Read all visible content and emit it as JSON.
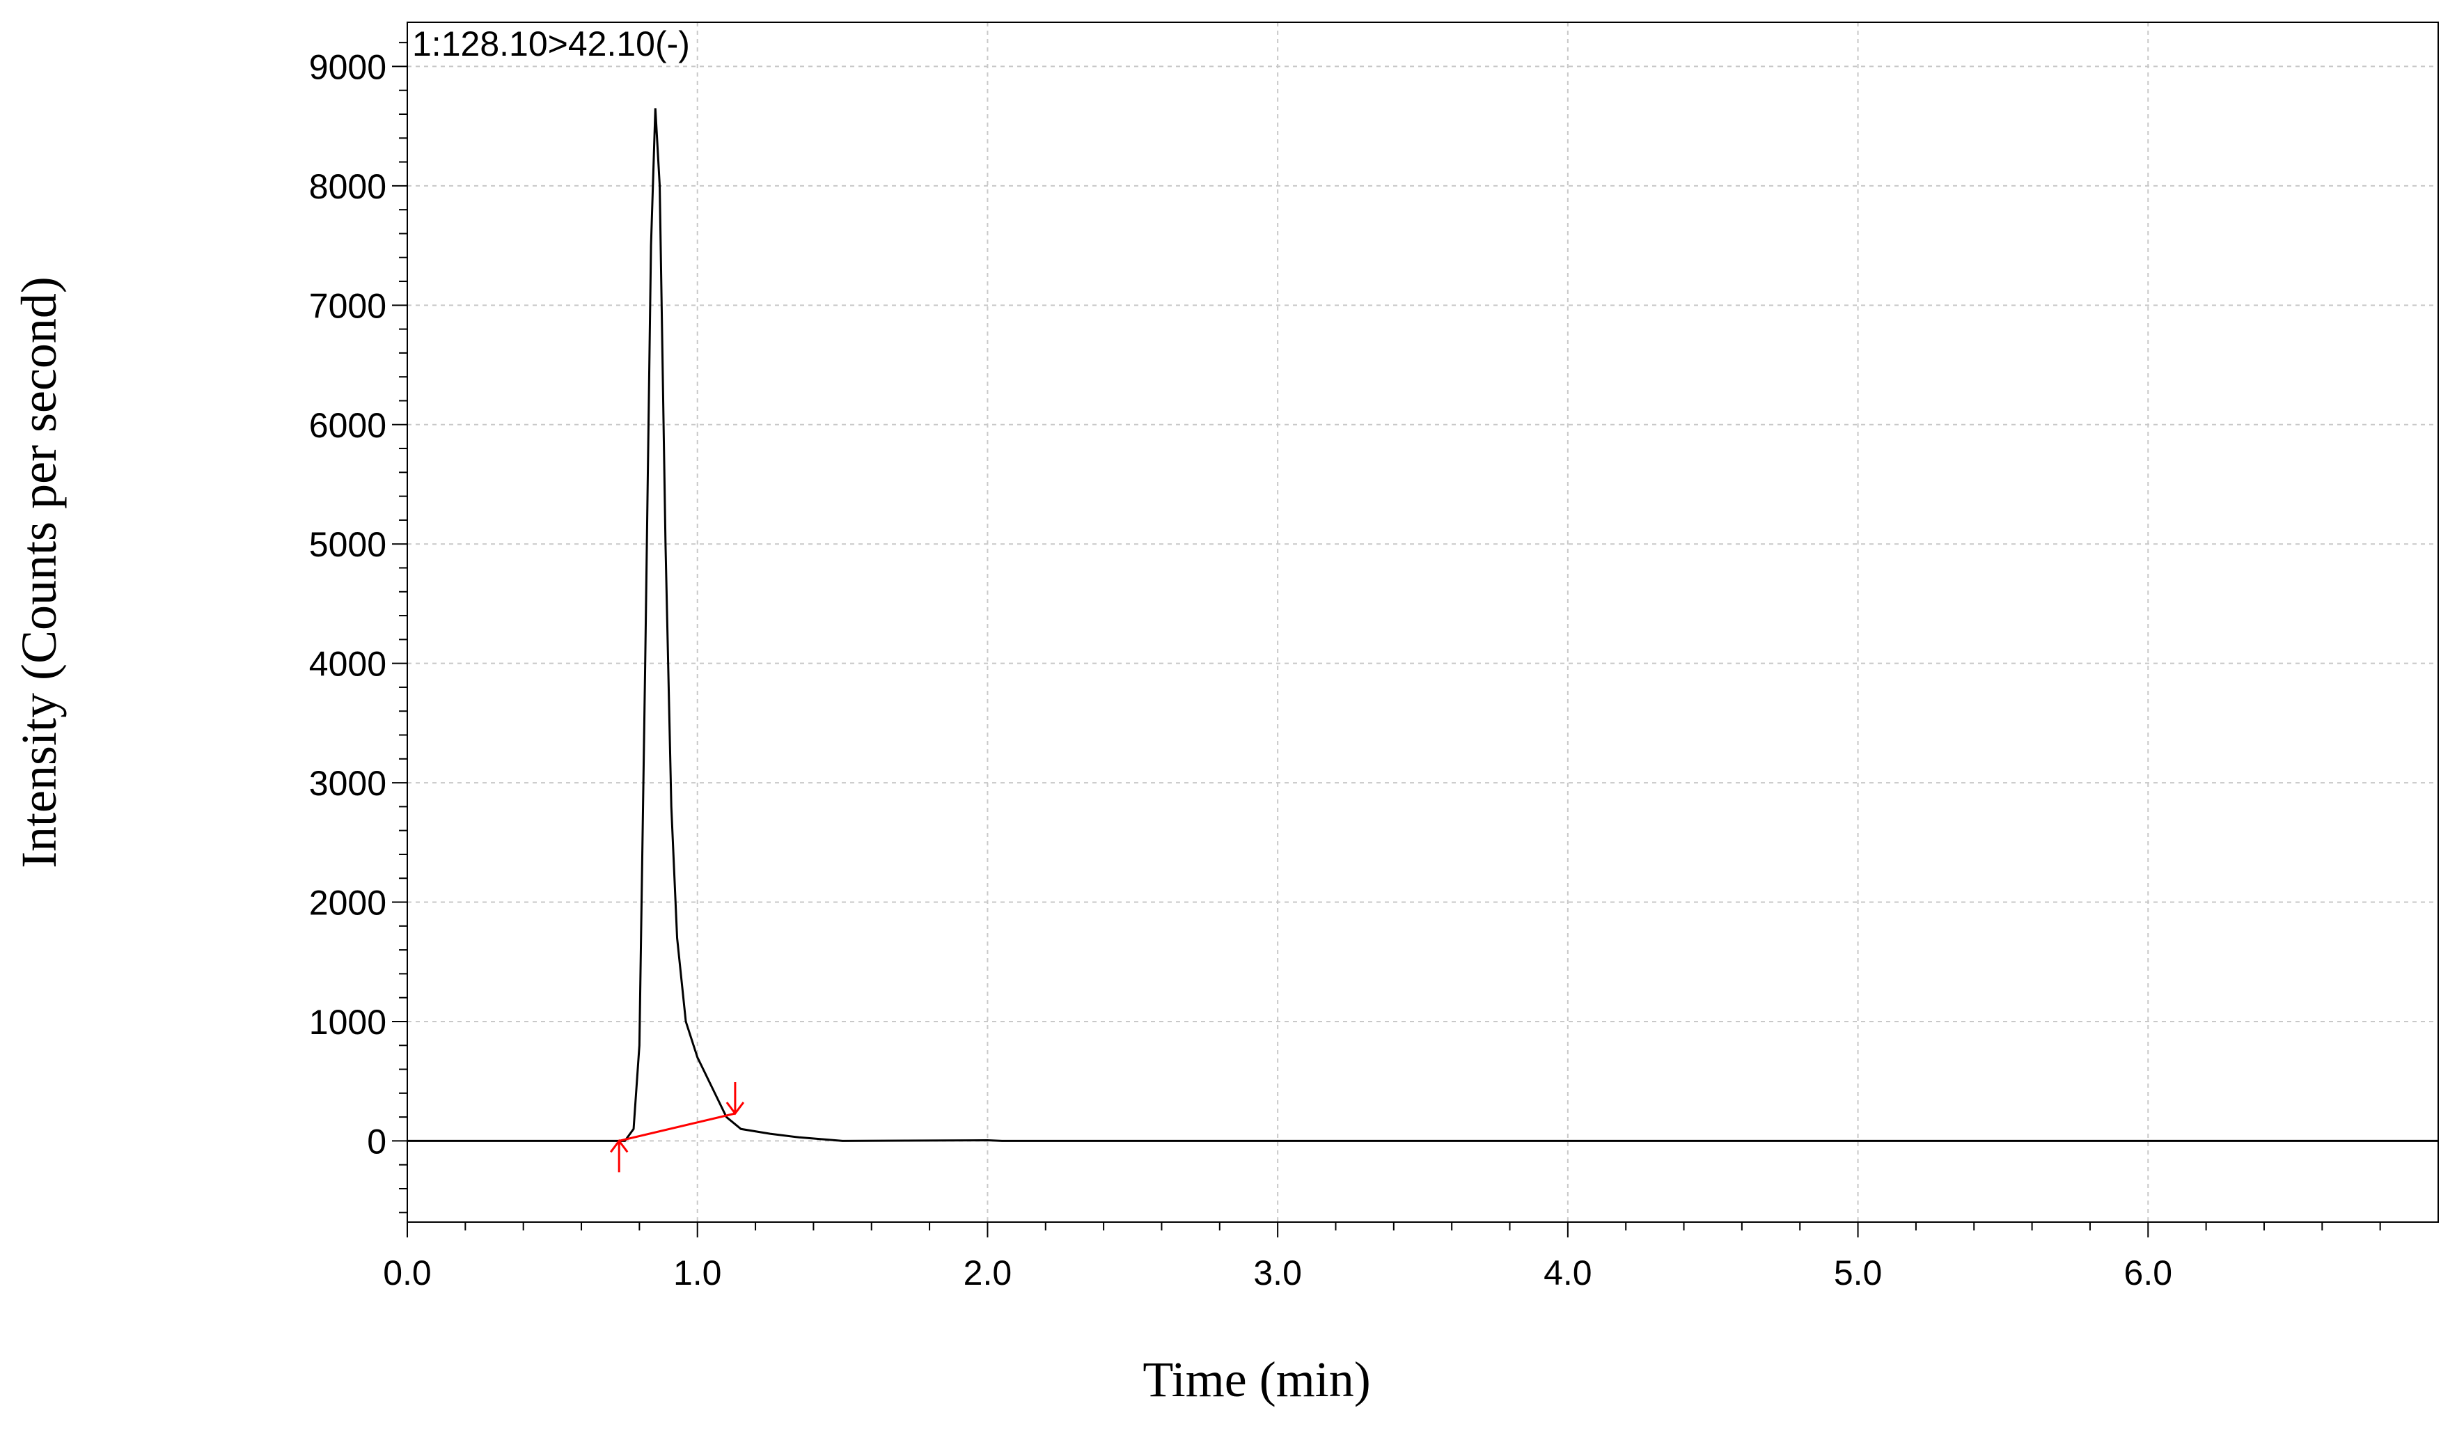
{
  "chart_data": {
    "type": "line",
    "title": "1:128.10>42.10(-)",
    "xlabel": "Time (min)",
    "ylabel": "Intensity (Counts per second)",
    "x": [
      0.0,
      0.7,
      0.75,
      0.78,
      0.8,
      0.82,
      0.84,
      0.855,
      0.87,
      0.89,
      0.91,
      0.93,
      0.96,
      1.0,
      1.05,
      1.1,
      1.15,
      1.25,
      1.35,
      1.5,
      2.0,
      2.05,
      7.0
    ],
    "series": [
      {
        "color": "#000000",
        "values": [
          0,
          0,
          0,
          100,
          800,
          4000,
          7500,
          8650,
          8000,
          5000,
          2800,
          1700,
          1000,
          700,
          450,
          200,
          100,
          60,
          30,
          0,
          5,
          0,
          0
        ]
      }
    ],
    "baseline": {
      "color": "#ff0000",
      "x": [
        0.73,
        1.13
      ],
      "values": [
        0,
        230
      ]
    },
    "xlim": [
      0,
      7.0
    ],
    "ylim": [
      -680,
      9370
    ],
    "xticks": [
      {
        "value": 0,
        "label": "0.0"
      },
      {
        "value": 1,
        "label": "1.0"
      },
      {
        "value": 2,
        "label": "2.0"
      },
      {
        "value": 3,
        "label": "3.0"
      },
      {
        "value": 4,
        "label": "4.0"
      },
      {
        "value": 5,
        "label": "5.0"
      },
      {
        "value": 6,
        "label": "6.0"
      }
    ],
    "yticks": [
      0,
      1000,
      2000,
      3000,
      4000,
      5000,
      6000,
      7000,
      8000,
      9000
    ],
    "xminorticks": [
      0.2,
      0.4,
      0.6,
      0.8,
      1.2,
      1.4,
      1.6,
      1.8,
      2.2,
      2.4,
      2.6,
      2.8,
      3.2,
      3.4,
      3.6,
      3.8,
      4.2,
      4.4,
      4.6,
      4.8,
      5.2,
      5.4,
      5.6,
      5.8,
      6.2,
      6.4,
      6.6,
      6.8
    ],
    "yminorticks": [
      -600,
      -400,
      -200,
      200,
      400,
      600,
      800,
      1200,
      1400,
      1600,
      1800,
      2200,
      2400,
      2600,
      2800,
      3200,
      3400,
      3600,
      3800,
      4200,
      4400,
      4600,
      4800,
      5200,
      5400,
      5600,
      5800,
      6200,
      6400,
      6600,
      6800,
      7200,
      7400,
      7600,
      7800,
      8200,
      8400,
      8600,
      8800,
      9200
    ],
    "grid": true
  }
}
